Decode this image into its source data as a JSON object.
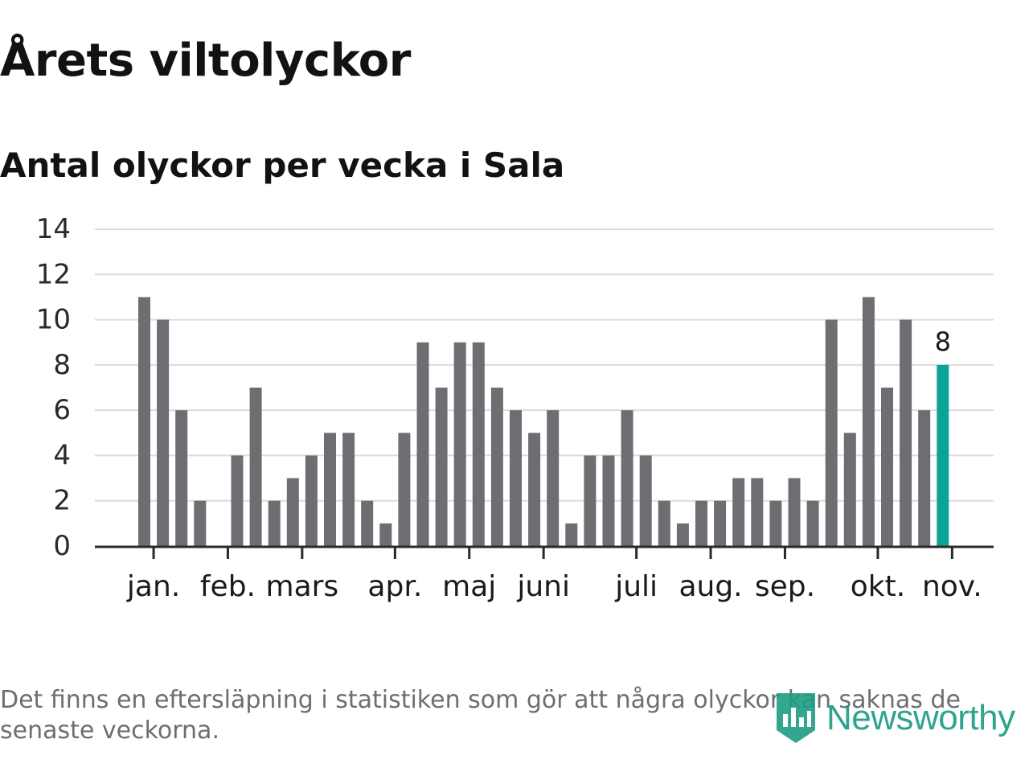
{
  "title": "Årets viltolyckor",
  "subtitle": "Antal olyckor per vecka i Sala",
  "footnote": "Det finns en eftersläpning i statistiken som gör att några olyckor kan saknas de senaste veckorna.",
  "brand": {
    "name": "Newsworthy",
    "icon": "newsworthy-logo-icon",
    "color": "#1e9c84"
  },
  "chart_data": {
    "type": "bar",
    "title": "Antal olyckor per vecka i Sala",
    "ylim": [
      0,
      14
    ],
    "y_ticks": [
      0,
      2,
      4,
      6,
      8,
      10,
      12,
      14
    ],
    "grid": true,
    "bar_color": "#6e6d72",
    "highlight_color": "#0aa396",
    "highlight_index": 44,
    "highlight_label": "8",
    "values": [
      11,
      10,
      6,
      2,
      0,
      4,
      7,
      2,
      3,
      4,
      5,
      5,
      2,
      1,
      5,
      9,
      7,
      9,
      9,
      7,
      6,
      5,
      6,
      1,
      4,
      4,
      6,
      4,
      2,
      1,
      2,
      2,
      3,
      3,
      2,
      3,
      2,
      10,
      5,
      11,
      7,
      10,
      6,
      8
    ],
    "month_labels": [
      {
        "label": "jan.",
        "at": 0.5
      },
      {
        "label": "feb.",
        "at": 4.5
      },
      {
        "label": "mars",
        "at": 8.5
      },
      {
        "label": "apr.",
        "at": 13.5
      },
      {
        "label": "maj",
        "at": 17.5
      },
      {
        "label": "juni",
        "at": 21.5
      },
      {
        "label": "juli",
        "at": 26.5
      },
      {
        "label": "aug.",
        "at": 30.5
      },
      {
        "label": "sep.",
        "at": 34.5
      },
      {
        "label": "okt.",
        "at": 39.5
      },
      {
        "label": "nov.",
        "at": 43.5
      }
    ]
  }
}
